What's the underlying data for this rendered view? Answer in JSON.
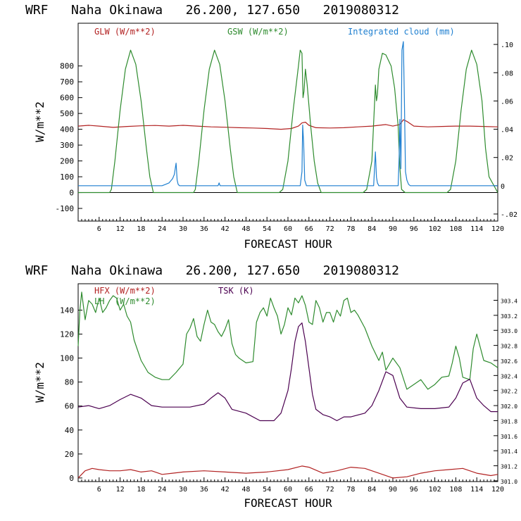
{
  "colors": {
    "axis": "#000000",
    "glw": "#b22222",
    "gsw": "#2e8b2e",
    "cloud": "#1e7fd0",
    "hfx": "#b22222",
    "lh": "#2e8b2e",
    "tsk": "#4b0050"
  },
  "chart_data": [
    {
      "type": "line",
      "title": "WRF   Naha Okinawa   26.200, 127.650   2019080312",
      "xlabel": "FORECAST HOUR",
      "ylabel": "W/m**2",
      "xlim": [
        0,
        120
      ],
      "ylim": [
        -180,
        1070
      ],
      "y2lim": [
        -0.025,
        0.115
      ],
      "xticks": [
        6,
        12,
        18,
        24,
        30,
        36,
        42,
        48,
        54,
        60,
        66,
        72,
        78,
        84,
        90,
        96,
        102,
        108,
        114,
        120
      ],
      "yticks": [
        -100,
        0,
        100,
        200,
        300,
        400,
        500,
        600,
        700,
        800
      ],
      "y2ticks": [
        -0.02,
        0,
        0.02,
        0.04,
        0.06,
        0.08,
        0.1
      ],
      "y2ticklabels": [
        "-.02",
        "0",
        ".02",
        ".04",
        ".06",
        ".08",
        ".10"
      ],
      "legend": [
        {
          "label": "GLW (W/m**2)",
          "color": "#b22222",
          "placement": "top-left"
        },
        {
          "label": "GSW (W/m**2)",
          "color": "#2e8b2e",
          "placement": "top-center"
        },
        {
          "label": "Integrated cloud (mm)",
          "color": "#1e7fd0",
          "placement": "top-right"
        }
      ],
      "series": [
        {
          "name": "GLW (W/m**2)",
          "axis": "left",
          "color": "#b22222",
          "x": [
            0,
            3,
            6,
            10,
            14,
            18,
            22,
            26,
            30,
            34,
            38,
            42,
            46,
            50,
            54,
            58,
            61,
            63,
            64,
            65,
            66,
            68,
            72,
            76,
            80,
            84,
            86,
            88,
            90,
            92,
            93,
            94,
            96,
            100,
            104,
            108,
            112,
            116,
            120
          ],
          "y": [
            420,
            425,
            420,
            412,
            418,
            422,
            424,
            420,
            425,
            420,
            415,
            413,
            410,
            408,
            405,
            400,
            405,
            420,
            440,
            445,
            425,
            410,
            408,
            410,
            415,
            420,
            425,
            430,
            420,
            430,
            460,
            450,
            420,
            415,
            418,
            420,
            420,
            418,
            415
          ]
        },
        {
          "name": "GSW (W/m**2)",
          "axis": "left",
          "color": "#2e8b2e",
          "x": [
            0,
            9,
            9.5,
            10.5,
            12,
            13.5,
            15,
            16.5,
            18,
            19.5,
            20.5,
            21.5,
            30,
            33,
            33.5,
            34.5,
            36,
            37.5,
            39,
            40.5,
            42,
            43.5,
            44.5,
            45.5,
            57,
            57.5,
            58.5,
            60,
            61.5,
            63,
            63.5,
            64,
            64.3,
            64.6,
            65,
            65.5,
            66.5,
            67.5,
            68.5,
            69.5,
            81,
            81.5,
            82.5,
            84,
            84.5,
            85,
            85.3,
            85.6,
            86,
            87,
            88,
            89.5,
            90.5,
            91.5,
            92,
            92.5,
            93.5,
            105,
            105.5,
            106.5,
            108,
            109.5,
            111,
            112.5,
            114,
            115.5,
            116.5,
            117.5,
            120
          ],
          "y": [
            0,
            0,
            20,
            200,
            520,
            780,
            900,
            810,
            580,
            280,
            100,
            0,
            0,
            0,
            20,
            200,
            520,
            780,
            900,
            810,
            580,
            280,
            100,
            0,
            0,
            0,
            20,
            200,
            520,
            800,
            900,
            880,
            600,
            640,
            780,
            680,
            420,
            200,
            60,
            0,
            0,
            0,
            20,
            200,
            440,
            680,
            580,
            620,
            780,
            880,
            870,
            800,
            660,
            420,
            160,
            20,
            0,
            0,
            0,
            20,
            200,
            520,
            780,
            900,
            810,
            580,
            280,
            100,
            0
          ]
        },
        {
          "name": "Integrated cloud (mm)",
          "axis": "right",
          "color": "#1e7fd0",
          "x": [
            0,
            24,
            25,
            26,
            27,
            27.5,
            28,
            28.3,
            28.6,
            29,
            40,
            40.3,
            40.6,
            63.5,
            64,
            64.2,
            64.5,
            64.8,
            65.3,
            84.5,
            85,
            85.3,
            85.6,
            86,
            91.5,
            91.8,
            92,
            92.3,
            92.6,
            93,
            93.3,
            93.6,
            94,
            94.5,
            95,
            120
          ],
          "y": [
            0,
            0,
            0.001,
            0.002,
            0.005,
            0.008,
            0.016,
            0.004,
            0.001,
            0,
            0,
            0.002,
            0,
            0,
            0.01,
            0.043,
            0.03,
            0.004,
            0,
            0,
            0.024,
            0.006,
            0.002,
            0,
            0,
            0.02,
            0.047,
            0.012,
            0.096,
            0.102,
            0.06,
            0.01,
            0.004,
            0.001,
            0,
            0
          ]
        }
      ]
    },
    {
      "type": "line",
      "title": "WRF   Naha Okinawa   26.200, 127.650   2019080312",
      "xlabel": "FORECAST HOUR",
      "ylabel": "W/m**2",
      "xlim": [
        0,
        120
      ],
      "ylim": [
        -3,
        162
      ],
      "y2lim": [
        300.99,
        303.62
      ],
      "xticks": [
        6,
        12,
        18,
        24,
        30,
        36,
        42,
        48,
        54,
        60,
        66,
        72,
        78,
        84,
        90,
        96,
        102,
        108,
        114,
        120
      ],
      "yticks": [
        0,
        20,
        40,
        60,
        80,
        100,
        120,
        140
      ],
      "y2ticks": [
        301.0,
        301.2,
        301.4,
        301.6,
        301.8,
        302.0,
        302.2,
        302.4,
        302.6,
        302.8,
        303.0,
        303.2,
        303.4
      ],
      "y2ticklabels": [
        "301.0",
        "301.2",
        "301.4",
        "301.6",
        "301.8",
        "302.0",
        "302.2",
        "302.4",
        "302.6",
        "302.8",
        "303.0",
        "303.2",
        "303.4"
      ],
      "legend": [
        {
          "label": "HFX (W/m**2)",
          "color": "#b22222",
          "placement": "top-left"
        },
        {
          "label": "LH  (W/m**2)",
          "color": "#2e8b2e",
          "placement": "top-left"
        },
        {
          "label": "TSK (K)",
          "color": "#4b0050",
          "placement": "top-center"
        }
      ],
      "series": [
        {
          "name": "HFX (W/m**2)",
          "axis": "left",
          "color": "#b22222",
          "x": [
            0,
            2,
            4,
            6,
            9,
            12,
            15,
            18,
            21,
            24,
            27,
            30,
            36,
            42,
            48,
            54,
            60,
            64,
            66,
            70,
            74,
            78,
            82,
            86,
            90,
            94,
            98,
            102,
            106,
            110,
            114,
            118,
            120
          ],
          "y": [
            0,
            6,
            8,
            7,
            6,
            6,
            7,
            5,
            6,
            3,
            4,
            5,
            6,
            5,
            4,
            5,
            7,
            10,
            9,
            4,
            6,
            9,
            8,
            4,
            0,
            1,
            4,
            6,
            7,
            8,
            4,
            2,
            3
          ]
        },
        {
          "name": "LH (W/m**2)",
          "axis": "left",
          "color": "#2e8b2e",
          "x": [
            0,
            0.5,
            1,
            2,
            3,
            4,
            5,
            6,
            7,
            8,
            9,
            10,
            11,
            12,
            13,
            14,
            15,
            16,
            18,
            20,
            22,
            24,
            26,
            28,
            30,
            31,
            32,
            33,
            34,
            35,
            36,
            37,
            38,
            39,
            40,
            41,
            42,
            43,
            44,
            45,
            46,
            48,
            50,
            51,
            52,
            53,
            54,
            55,
            56,
            57,
            58,
            59,
            60,
            61,
            62,
            63,
            64,
            65,
            66,
            67,
            68,
            69,
            70,
            71,
            72,
            73,
            74,
            75,
            76,
            77,
            78,
            79,
            80,
            82,
            84,
            86,
            87,
            88,
            90,
            92,
            94,
            96,
            98,
            100,
            102,
            104,
            106,
            107,
            108,
            109,
            110,
            112,
            113,
            114,
            116,
            118,
            120
          ],
          "y": [
            110,
            140,
            155,
            132,
            148,
            145,
            138,
            150,
            138,
            142,
            148,
            152,
            150,
            140,
            145,
            135,
            130,
            115,
            98,
            88,
            84,
            82,
            82,
            88,
            95,
            120,
            125,
            133,
            118,
            114,
            128,
            140,
            130,
            128,
            122,
            118,
            124,
            132,
            112,
            103,
            100,
            96,
            97,
            130,
            138,
            142,
            135,
            150,
            142,
            135,
            120,
            128,
            142,
            136,
            150,
            146,
            152,
            144,
            130,
            128,
            148,
            142,
            130,
            138,
            138,
            130,
            140,
            135,
            148,
            150,
            138,
            140,
            136,
            125,
            110,
            98,
            105,
            90,
            100,
            92,
            74,
            78,
            82,
            74,
            78,
            84,
            85,
            96,
            110,
            100,
            84,
            82,
            108,
            120,
            98,
            96,
            92
          ]
        },
        {
          "name": "TSK (K)",
          "axis": "right",
          "color": "#4b0050",
          "x": [
            0,
            3,
            6,
            9,
            12,
            15,
            18,
            21,
            24,
            28,
            32,
            36,
            38,
            40,
            42,
            44,
            48,
            52,
            56,
            58,
            60,
            61,
            62,
            63,
            64,
            65,
            66,
            67,
            68,
            70,
            72,
            74,
            76,
            78,
            82,
            84,
            86,
            88,
            90,
            92,
            94,
            98,
            102,
            106,
            108,
            110,
            112,
            114,
            116,
            118,
            120
          ],
          "y": [
            301.98,
            302.0,
            301.96,
            302.0,
            302.08,
            302.15,
            302.1,
            302.0,
            301.98,
            301.98,
            301.98,
            302.02,
            302.1,
            302.17,
            302.1,
            301.95,
            301.9,
            301.8,
            301.8,
            301.9,
            302.2,
            302.5,
            302.85,
            303.05,
            303.1,
            302.85,
            302.5,
            302.15,
            301.95,
            301.88,
            301.85,
            301.8,
            301.85,
            301.85,
            301.9,
            302.0,
            302.2,
            302.45,
            302.4,
            302.1,
            301.98,
            301.96,
            301.96,
            301.98,
            302.1,
            302.3,
            302.35,
            302.1,
            302.0,
            301.92,
            301.92
          ]
        }
      ]
    }
  ]
}
